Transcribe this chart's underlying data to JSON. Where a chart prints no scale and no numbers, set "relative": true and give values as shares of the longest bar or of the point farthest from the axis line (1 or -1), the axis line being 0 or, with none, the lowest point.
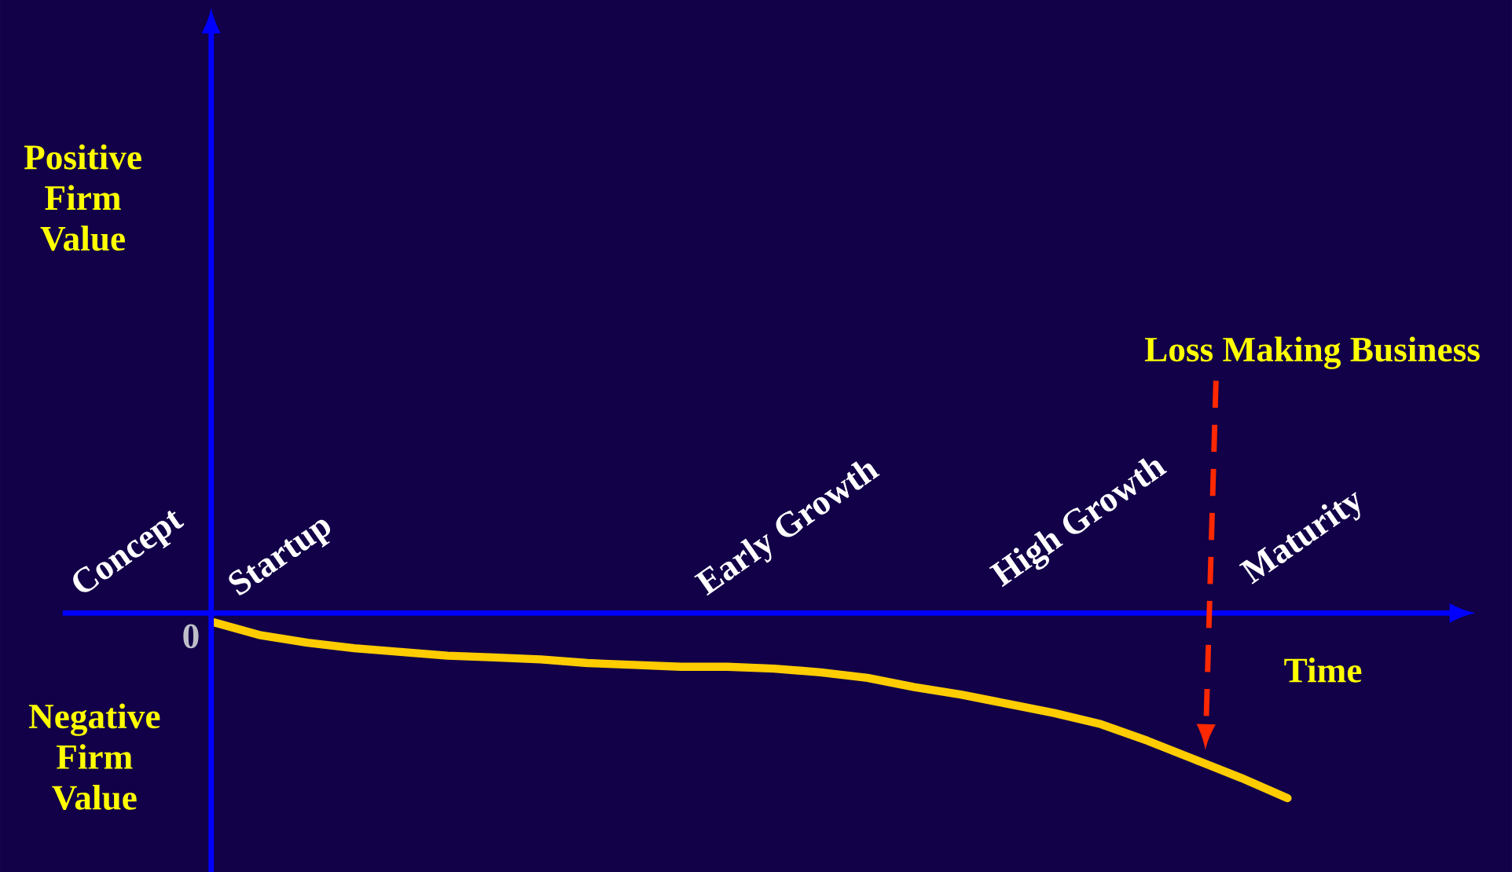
{
  "chart_data": {
    "type": "line",
    "relative": true,
    "xlabel": "Time",
    "color": "#ffcc00",
    "categories": [
      null,
      null,
      null,
      null,
      null,
      null,
      null,
      null,
      null,
      null,
      null,
      null,
      null,
      null,
      null,
      null,
      null,
      null,
      null,
      null,
      null,
      null,
      null,
      null
    ],
    "values": [
      -0.05,
      -0.12,
      -0.16,
      -0.19,
      -0.21,
      -0.23,
      -0.24,
      -0.25,
      -0.27,
      -0.28,
      -0.29,
      -0.29,
      -0.3,
      -0.32,
      -0.35,
      -0.4,
      -0.44,
      -0.49,
      -0.54,
      -0.6,
      -0.69,
      -0.79,
      -0.89,
      -1
    ],
    "annotations": [
      "Positive Firm Value",
      "Negative Firm Value",
      "0",
      "Concept",
      "Startup",
      "Early Growth",
      "High Growth",
      "Maturity",
      "Loss Making Business"
    ]
  }
}
